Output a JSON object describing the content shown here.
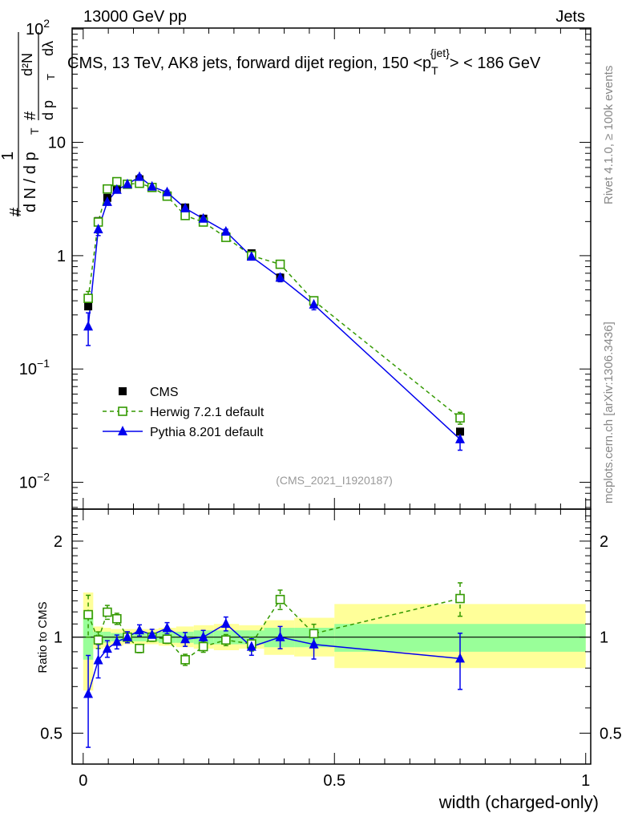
{
  "header": {
    "left": "13000 GeV pp",
    "right": "Jets"
  },
  "side_labels": {
    "rivet": "Rivet 4.1.0, ≥ 100k events",
    "mcplots": "mcplots.cern.ch [arXiv:1306.3436]"
  },
  "chart_data": {
    "type": "scatter",
    "title": "CMS, 13 TeV, AK8 jets, forward dijet region, 150 <p_T^{jet}> < 186 GeV",
    "title_parts": {
      "main": "CMS, 13 TeV, AK8 jets, forward dijet region, 150 <p",
      "sub": "T",
      "sup": "{jet}",
      "end": "> < 186 GeV"
    },
    "analysis_tag": "(CMS_2021_I1920187)",
    "xlabel": "width (charged-only)",
    "ylabel": "1/(dN/dp_T) d²N/(dp_T dλ)",
    "ylabel_parts": {
      "hash": "#",
      "one": "1",
      "den": "d N / d p",
      "T": "T",
      "num": "d²N",
      "num2": "d p",
      "dl": "dλ"
    },
    "ratio_ylabel": "Ratio to CMS",
    "xlim": [
      -0.022,
      1.01
    ],
    "ylim": [
      0.0058,
      102
    ],
    "yscale": "log",
    "ratio_ylim": [
      0.4,
      2.52
    ],
    "xticks": [
      {
        "v": 0,
        "label": "0"
      },
      {
        "v": 0.5,
        "label": "0.5"
      },
      {
        "v": 1,
        "label": "1"
      }
    ],
    "yticks": [
      {
        "v": 100,
        "b": "10",
        "e": "2"
      },
      {
        "v": 10,
        "b": "10",
        "e": ""
      },
      {
        "v": 1,
        "b": "1",
        "e": ""
      },
      {
        "v": 0.1,
        "b": "10",
        "e": "−1"
      },
      {
        "v": 0.01,
        "b": "10",
        "e": "−2"
      }
    ],
    "ratio_yticks": [
      {
        "v": 2,
        "label": "2"
      },
      {
        "v": 1,
        "label": "1"
      },
      {
        "v": 0.5,
        "label": "0.5"
      }
    ],
    "x": [
      0.01,
      0.03,
      0.048,
      0.067,
      0.088,
      0.112,
      0.137,
      0.167,
      0.203,
      0.239,
      0.284,
      0.335,
      0.392,
      0.459,
      0.75
    ],
    "bin_edges": [
      0,
      0.02,
      0.04,
      0.055,
      0.08,
      0.1,
      0.125,
      0.15,
      0.185,
      0.22,
      0.26,
      0.31,
      0.36,
      0.42,
      0.5,
      1.0
    ],
    "legend_position": "lower-left",
    "series": [
      {
        "name": "CMS",
        "label": "CMS",
        "marker": "filled-square",
        "color": "#000000",
        "values": [
          0.357,
          2.02,
          3.24,
          3.94,
          4.27,
          4.72,
          4.0,
          3.4,
          2.66,
          2.12,
          1.48,
          1.05,
          0.64,
          0.39,
          0.028
        ],
        "band_outer": [
          [
            0.68,
            1.38
          ],
          [
            0.92,
            1.08
          ],
          [
            0.93,
            1.07
          ],
          [
            0.94,
            1.06
          ],
          [
            0.95,
            1.06
          ],
          [
            0.95,
            1.06
          ],
          [
            0.95,
            1.06
          ],
          [
            0.94,
            1.07
          ],
          [
            0.93,
            1.08
          ],
          [
            0.92,
            1.09
          ],
          [
            0.91,
            1.1
          ],
          [
            0.92,
            1.09
          ],
          [
            0.88,
            1.13
          ],
          [
            0.87,
            1.15
          ],
          [
            0.8,
            1.27
          ]
        ],
        "band_inner": [
          [
            0.85,
            1.2
          ],
          [
            0.96,
            1.04
          ],
          [
            0.96,
            1.04
          ],
          [
            0.97,
            1.03
          ],
          [
            0.97,
            1.03
          ],
          [
            0.97,
            1.03
          ],
          [
            0.97,
            1.03
          ],
          [
            0.96,
            1.04
          ],
          [
            0.96,
            1.04
          ],
          [
            0.95,
            1.05
          ],
          [
            0.95,
            1.05
          ],
          [
            0.95,
            1.05
          ],
          [
            0.93,
            1.07
          ],
          [
            0.93,
            1.07
          ],
          [
            0.9,
            1.1
          ]
        ]
      },
      {
        "name": "Herwig",
        "label": "Herwig 7.2.1 default",
        "marker": "open-square",
        "color": "#339900",
        "values": [
          0.42,
          1.98,
          3.88,
          4.5,
          4.27,
          4.35,
          4.0,
          3.35,
          2.26,
          1.98,
          1.45,
          1.0,
          0.84,
          0.4,
          0.037
        ],
        "rel_err": [
          0.15,
          0.06,
          0.05,
          0.04,
          0.03,
          0.03,
          0.03,
          0.03,
          0.04,
          0.04,
          0.04,
          0.05,
          0.07,
          0.07,
          0.12
        ]
      },
      {
        "name": "Pythia",
        "label": "Pythia 8.201 default",
        "marker": "filled-triangle",
        "color": "#0000ee",
        "values": [
          0.237,
          1.71,
          2.98,
          3.81,
          4.27,
          4.96,
          4.07,
          3.63,
          2.62,
          2.12,
          1.63,
          0.98,
          0.64,
          0.37,
          0.024
        ],
        "rel_err": [
          0.32,
          0.12,
          0.06,
          0.05,
          0.04,
          0.04,
          0.04,
          0.04,
          0.05,
          0.05,
          0.05,
          0.06,
          0.08,
          0.1,
          0.2
        ]
      }
    ]
  }
}
